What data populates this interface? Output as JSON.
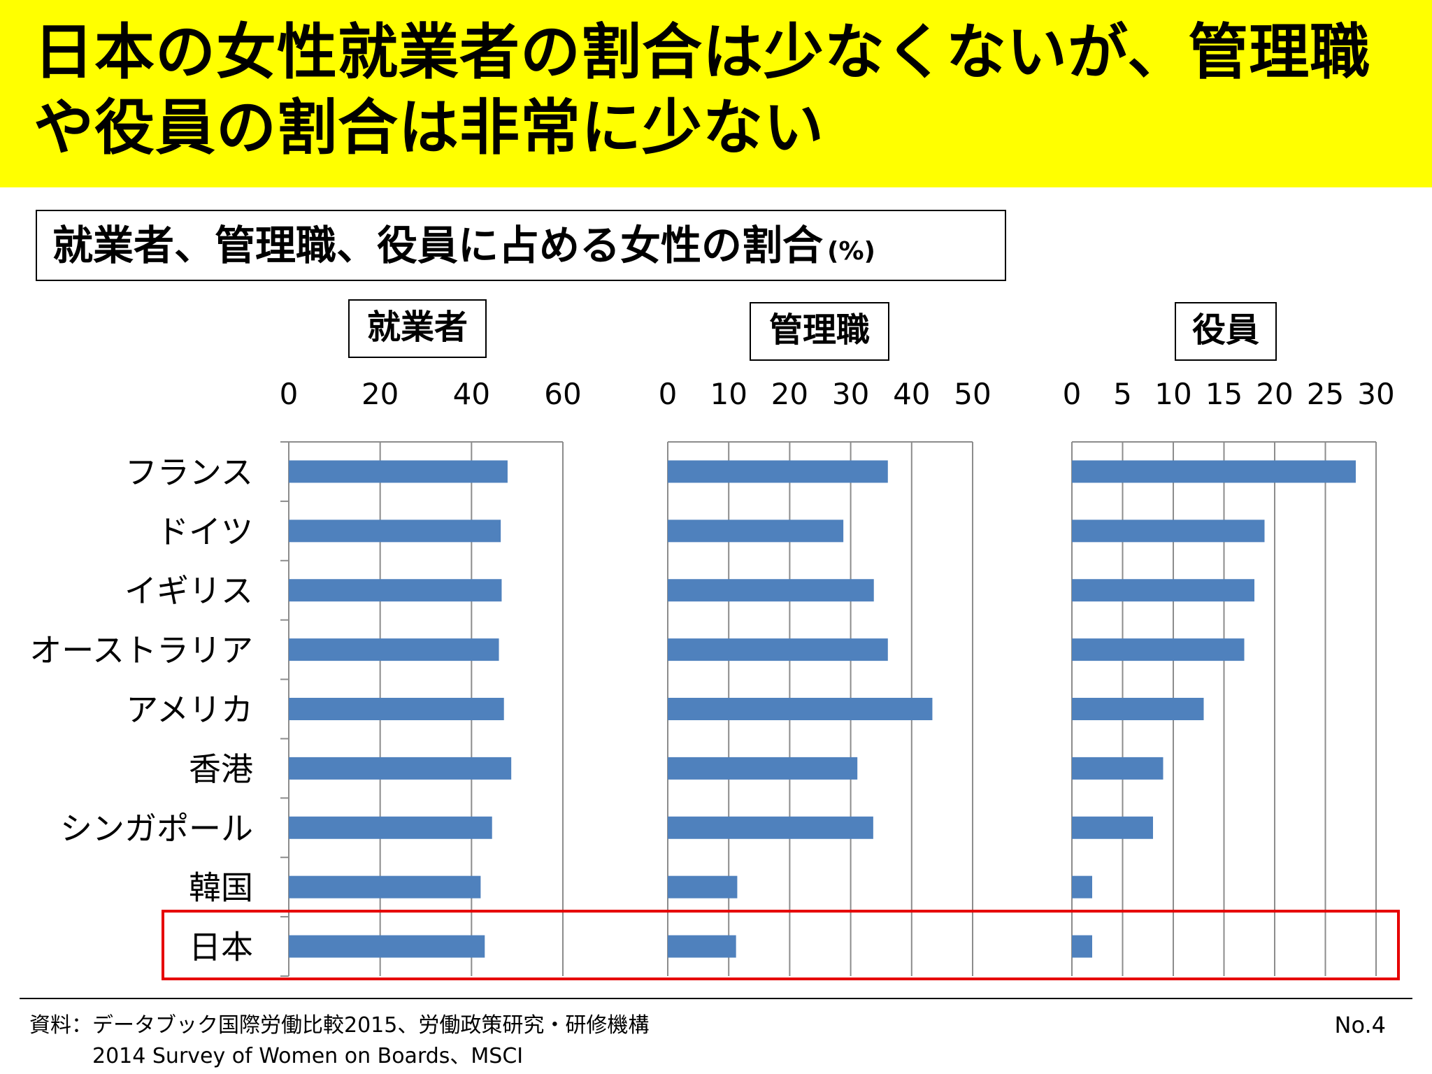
{
  "banner": {
    "title_line1": "日本の女性就業者の割合は少なくないが、管理職",
    "title_line2": "や役員の割合は非常に少ない"
  },
  "chart_heading": {
    "title": "就業者、管理職、役員に占める女性の割合",
    "unit": "(%)"
  },
  "chart_data": {
    "type": "bar",
    "orientation": "horizontal",
    "categories": [
      "フランス",
      "ドイツ",
      "イギリス",
      "オーストラリア",
      "アメリカ",
      "香港",
      "シンガポール",
      "韓国",
      "日本"
    ],
    "highlight_category": "日本",
    "highlight_color": "#e60000",
    "bar_color": "#4f81bd",
    "panels": [
      {
        "name": "就業者",
        "ticks": [
          0,
          20,
          40,
          60
        ],
        "xlim": [
          0,
          60
        ],
        "values": [
          47.9,
          46.4,
          46.6,
          46.0,
          47.1,
          48.7,
          44.5,
          42.0,
          42.9
        ]
      },
      {
        "name": "管理職",
        "ticks": [
          0,
          10,
          20,
          30,
          40,
          50
        ],
        "xlim": [
          0,
          50
        ],
        "values": [
          36.1,
          28.8,
          33.8,
          36.1,
          43.4,
          31.1,
          33.7,
          11.4,
          11.2
        ]
      },
      {
        "name": "役員",
        "ticks": [
          0,
          5,
          10,
          15,
          20,
          25,
          30
        ],
        "xlim": [
          0,
          30
        ],
        "values": [
          28.0,
          19.0,
          18.0,
          17.0,
          13.0,
          9.0,
          8.0,
          2.0,
          2.0
        ]
      }
    ]
  },
  "footer": {
    "source_line1": "資料：データブック国際労働比較2015、労働政策研究・研修機構",
    "source_line2": "2014 Survey of Women on Boards、MSCI",
    "page_number": "No.4"
  }
}
